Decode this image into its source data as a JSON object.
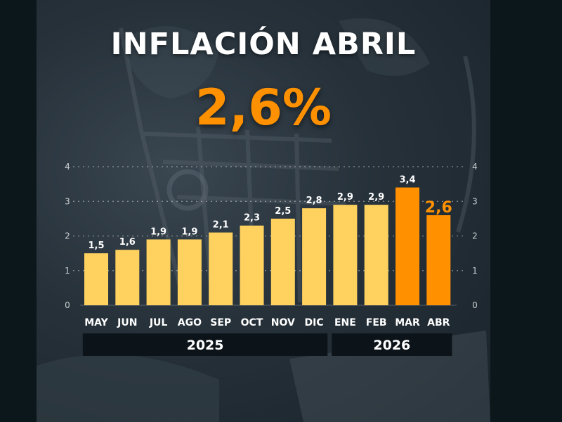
{
  "title": "INFLACIÓN ABRIL",
  "headline_value": "2,6%",
  "colors": {
    "bar": "#ffd25f",
    "bar_highlight": "#ff9100",
    "text": "#ffffff",
    "axis_tick": "#c9cdd0",
    "year_band": "#0c1419"
  },
  "chart_data": {
    "type": "bar",
    "categories": [
      "MAY",
      "JUN",
      "JUL",
      "AGO",
      "SEP",
      "OCT",
      "NOV",
      "DIC",
      "ENE",
      "FEB",
      "MAR",
      "ABR"
    ],
    "values": [
      1.5,
      1.6,
      1.9,
      1.9,
      2.1,
      2.3,
      2.5,
      2.8,
      2.9,
      2.9,
      3.4,
      2.6
    ],
    "value_labels": [
      "1,5",
      "1,6",
      "1,9",
      "1,9",
      "2,1",
      "2,3",
      "2,5",
      "2,8",
      "2,9",
      "2,9",
      "3,4",
      "2,6"
    ],
    "highlighted": [
      false,
      false,
      false,
      false,
      false,
      false,
      false,
      false,
      false,
      false,
      true,
      true
    ],
    "ylim": [
      0,
      4
    ],
    "yticks": [
      0,
      1,
      2,
      3,
      4
    ],
    "grid": true,
    "year_groups": [
      {
        "label": "2025",
        "start": 0,
        "end": 7
      },
      {
        "label": "2026",
        "start": 8,
        "end": 11
      }
    ]
  }
}
